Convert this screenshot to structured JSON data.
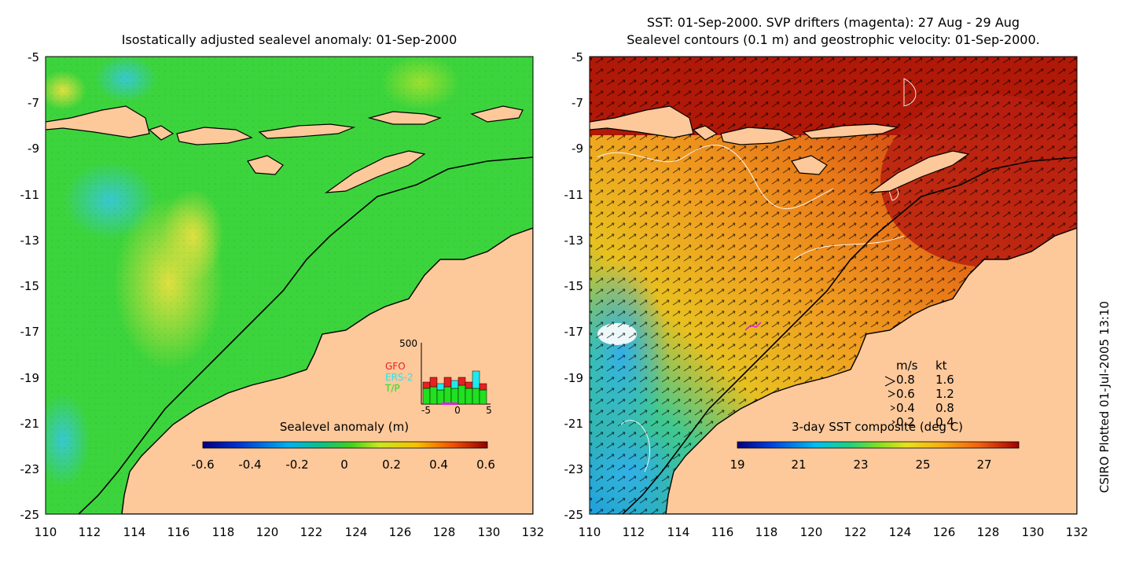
{
  "left_map": {
    "title": "Isostatically adjusted sealevel anomaly: 01-Sep-2000",
    "colorbar": {
      "label": "Sealevel anomaly (m)",
      "ticks": [
        "-0.6",
        "-0.4",
        "-0.2",
        "0",
        "0.2",
        "0.4",
        "0.6"
      ]
    },
    "inset": {
      "ymax_label": "500",
      "legend": [
        "GFO",
        "ERS-2",
        "T/P"
      ],
      "legend_colors": [
        "#e82020",
        "#20e8f0",
        "#20e020"
      ],
      "x_ticks": [
        "-5",
        "0",
        "5"
      ]
    }
  },
  "right_map": {
    "title_line1": "SST: 01-Sep-2000. SVP drifters (magenta): 27 Aug - 29 Aug",
    "title_line2": "Sealevel contours (0.1 m) and geostrophic velocity: 01-Sep-2000.",
    "colorbar": {
      "label": "3-day SST composite (deg C)",
      "ticks": [
        "19",
        "21",
        "23",
        "25",
        "27"
      ]
    },
    "velocity_key": {
      "header_ms": "m/s",
      "header_kt": "kt",
      "rows": [
        {
          "ms": "0.8",
          "kt": "1.6"
        },
        {
          "ms": "0.6",
          "kt": "1.2"
        },
        {
          "ms": "0.4",
          "kt": "0.8"
        },
        {
          "ms": "0.2",
          "kt": "0.4"
        }
      ]
    }
  },
  "axes": {
    "y_ticks": [
      "-5",
      "-7",
      "-9",
      "-11",
      "-13",
      "-15",
      "-17",
      "-19",
      "-21",
      "-23",
      "-25"
    ],
    "x_ticks": [
      "110",
      "112",
      "114",
      "116",
      "118",
      "120",
      "122",
      "124",
      "126",
      "128",
      "130",
      "132"
    ]
  },
  "credit": "CSIRO Plotted 01-Jul-2005 13:10",
  "colors": {
    "land": "#fdc89a",
    "ocean_left": "#3cd43c",
    "ocean_right_warm": "#c8200a",
    "ocean_right_mid": "#f0a020"
  }
}
